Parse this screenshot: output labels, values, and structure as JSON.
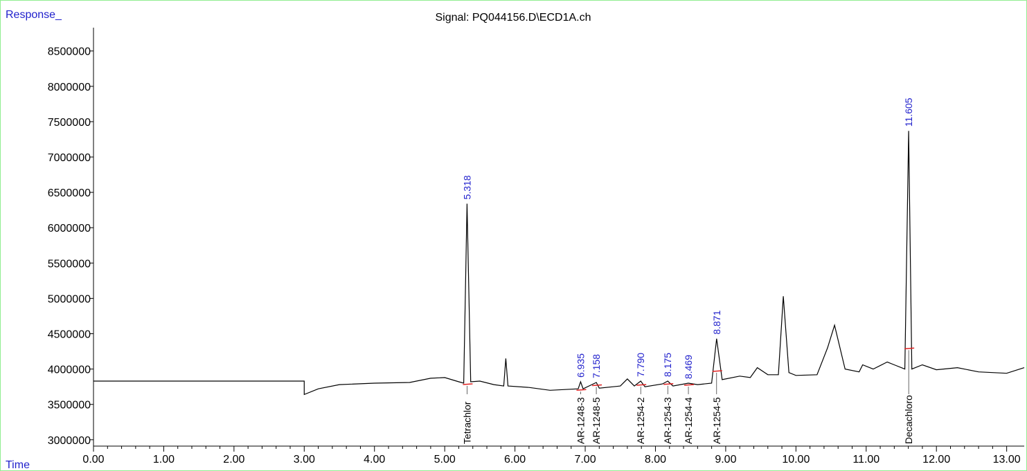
{
  "chart_data": {
    "type": "line",
    "title": "Signal: PQ044156.D\\ECD1A.ch",
    "y_label": "Response_",
    "x_label": "Time",
    "color": "#000000",
    "xlim": [
      0,
      13.25
    ],
    "ylim": [
      2910000,
      8830000
    ],
    "xticks": [
      {
        "value": 0,
        "label": "0.00"
      },
      {
        "value": 1,
        "label": "1.00"
      },
      {
        "value": 2,
        "label": "2.00"
      },
      {
        "value": 3,
        "label": "3.00"
      },
      {
        "value": 4,
        "label": "4.00"
      },
      {
        "value": 5,
        "label": "5.00"
      },
      {
        "value": 6,
        "label": "6.00"
      },
      {
        "value": 7,
        "label": "7.00"
      },
      {
        "value": 8,
        "label": "8.00"
      },
      {
        "value": 9,
        "label": "9.00"
      },
      {
        "value": 10,
        "label": "10.00"
      },
      {
        "value": 11,
        "label": "11.00"
      },
      {
        "value": 12,
        "label": "12.00"
      },
      {
        "value": 13,
        "label": "13.00"
      }
    ],
    "yticks": [
      3000000,
      3500000,
      4000000,
      4500000,
      5000000,
      5500000,
      6000000,
      6500000,
      7000000,
      7500000,
      8000000,
      8500000
    ],
    "x": [
      0,
      3.0,
      3.0,
      3.2,
      3.5,
      4.0,
      4.5,
      4.8,
      5.0,
      5.2,
      5.27,
      5.318,
      5.37,
      5.5,
      5.7,
      5.84,
      5.87,
      5.9,
      6.2,
      6.5,
      6.9,
      6.935,
      6.97,
      7.158,
      7.2,
      7.5,
      7.6,
      7.7,
      7.79,
      7.85,
      8.1,
      8.175,
      8.25,
      8.469,
      8.6,
      8.8,
      8.871,
      8.95,
      9.2,
      9.35,
      9.45,
      9.6,
      9.75,
      9.82,
      9.9,
      10.0,
      10.3,
      10.45,
      10.55,
      10.7,
      10.9,
      10.95,
      11.1,
      11.3,
      11.4,
      11.55,
      11.605,
      11.65,
      11.8,
      12.0,
      12.3,
      12.6,
      13.0,
      13.25
    ],
    "series": [
      {
        "name": "ECD1A",
        "color": "#000000",
        "values": [
          3830000,
          3830000,
          3640000,
          3720000,
          3780000,
          3800000,
          3810000,
          3870000,
          3880000,
          3820000,
          3800000,
          6340000,
          3820000,
          3830000,
          3780000,
          3760000,
          4150000,
          3760000,
          3740000,
          3700000,
          3720000,
          3820000,
          3720000,
          3810000,
          3730000,
          3760000,
          3860000,
          3760000,
          3830000,
          3750000,
          3790000,
          3830000,
          3760000,
          3800000,
          3780000,
          3800000,
          4430000,
          3850000,
          3900000,
          3880000,
          4020000,
          3920000,
          3920000,
          5030000,
          3950000,
          3910000,
          3920000,
          4300000,
          4620000,
          4000000,
          3960000,
          4060000,
          4000000,
          4100000,
          4060000,
          4000000,
          7370000,
          4000000,
          4060000,
          3990000,
          4020000,
          3960000,
          3940000,
          4020000
        ]
      }
    ],
    "peaks": {
      "times": [
        5.318,
        6.935,
        7.158,
        7.79,
        8.175,
        8.469,
        8.871,
        11.605
      ],
      "value_labels": [
        "5.318",
        "6.935",
        "7.158",
        "7.790",
        "8.175",
        "8.469",
        "8.871",
        "11.605"
      ],
      "names": [
        "Tetrachlor",
        "AR-1248-3",
        "AR-1248-5",
        "AR-1254-2",
        "AR-1254-3",
        "AR-1254-4",
        "AR-1254-5",
        "Decachloro"
      ]
    }
  }
}
